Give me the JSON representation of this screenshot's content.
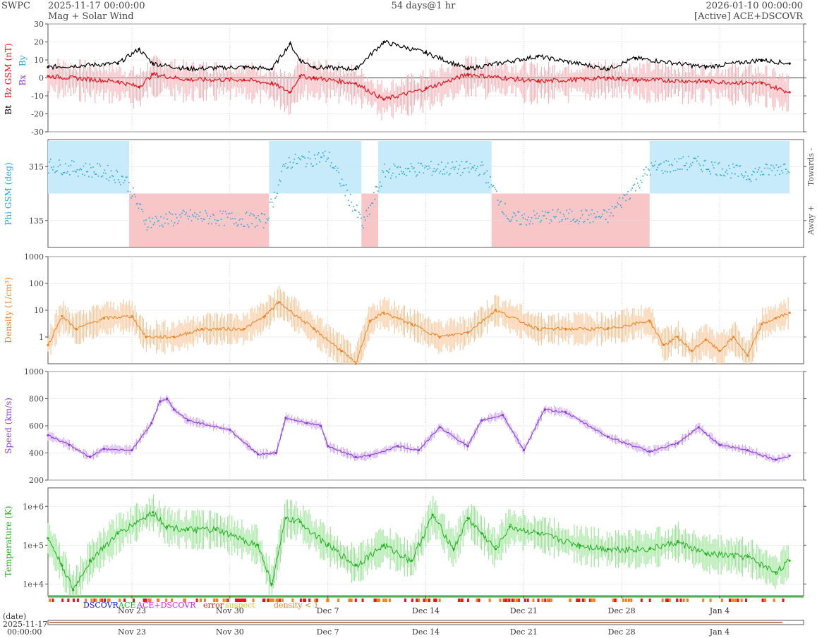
{
  "header": {
    "org": "SWPC",
    "start_time": "2025-11-17 00:00:00",
    "subtitle": "Mag + Solar Wind",
    "span": "54 days@1 hr",
    "end_time": "2026-01-10 00:00:00",
    "source": "[Active] ACE+DSCOVR"
  },
  "colors": {
    "bt": "#000000",
    "bz": "#e8141c",
    "bz_fill": "#f4b3b8",
    "bx": "#8a3fd8",
    "by": "#2aa6e6",
    "phi_towards_fill": "#c7ebfb",
    "phi_away_fill": "#f9c6c8",
    "phi_points": "#22a6e0",
    "density": "#f08020",
    "density_fill": "#f8c79a",
    "speed": "#8a3fd8",
    "speed_fill": "#cfaaf1",
    "temperature": "#1fb01f",
    "temperature_fill": "#9ee59a",
    "source_dscovr": "#1414e6",
    "source_ace": "#22b022",
    "source_both": "#e01ee6",
    "flag_error": "#e8141c",
    "flag_suspect": "#e0c010",
    "flag_density": "#f08020"
  },
  "chart_data": [
    {
      "id": "mag",
      "type": "line",
      "ylabel": "Bt  Bz GSM (nT)",
      "ylabel_parts": [
        "Bt",
        "Bz GSM (nT)",
        "Bx",
        "By"
      ],
      "ylim": [
        -30,
        30
      ],
      "yticks": [
        -30,
        -20,
        -10,
        0,
        10,
        20,
        30
      ],
      "x_days": [
        0,
        5,
        6.5,
        7.5,
        10,
        14,
        16,
        17.3,
        18,
        19,
        22,
        24,
        27,
        30,
        35,
        40,
        42,
        47,
        51,
        53
      ],
      "series": [
        {
          "name": "Bt",
          "values": [
            6,
            8,
            16,
            8,
            5,
            6,
            5,
            19,
            10,
            6,
            5,
            20,
            14,
            5,
            12,
            5,
            11,
            6,
            10,
            8
          ]
        },
        {
          "name": "Bz",
          "values": [
            1,
            -2,
            -5,
            2,
            -1,
            -1,
            -3,
            -8,
            1,
            0,
            -3,
            -12,
            -6,
            2,
            -2,
            0,
            -1,
            -2,
            -3,
            -8
          ]
        }
      ]
    },
    {
      "id": "phi",
      "type": "scatter",
      "ylabel": "Phi GSM (deg)",
      "ylim": [
        45,
        405
      ],
      "yticks": [
        135,
        315
      ],
      "right_labels": [
        "Towards -",
        "Away +"
      ],
      "sectors": [
        {
          "from": 0,
          "to": 5.8,
          "side": "towards"
        },
        {
          "from": 5.8,
          "to": 15.8,
          "side": "away"
        },
        {
          "from": 15.8,
          "to": 22.4,
          "side": "towards"
        },
        {
          "from": 22.4,
          "to": 23.6,
          "side": "away"
        },
        {
          "from": 23.6,
          "to": 31.7,
          "side": "towards"
        },
        {
          "from": 31.7,
          "to": 43,
          "side": "away"
        },
        {
          "from": 43,
          "to": 53,
          "side": "towards"
        }
      ],
      "x_days": [
        0,
        2,
        4,
        5.5,
        7,
        10,
        14,
        15.5,
        17,
        20,
        22.5,
        24,
        27,
        31,
        33,
        36,
        40,
        43,
        46,
        50,
        53
      ],
      "values": [
        320,
        310,
        300,
        275,
        130,
        150,
        140,
        135,
        330,
        350,
        120,
        300,
        310,
        310,
        140,
        150,
        150,
        310,
        330,
        290,
        320
      ]
    },
    {
      "id": "density",
      "type": "line",
      "ylabel": "Density (1/cm³)",
      "yscale": "log",
      "ylim": [
        0.1,
        1000
      ],
      "ytick_labels": [
        "1",
        "10",
        "100",
        "1000"
      ],
      "x_days": [
        0,
        1,
        2,
        4,
        6,
        7,
        9,
        11,
        14,
        15.5,
        16.5,
        19,
        21,
        22,
        23,
        24,
        26,
        28,
        30,
        32,
        35,
        37,
        40,
        43,
        44,
        45,
        46,
        47,
        48,
        49,
        50,
        51,
        52,
        53
      ],
      "values": [
        0.5,
        6,
        2,
        5,
        6,
        1,
        1,
        2,
        2,
        6,
        20,
        2,
        0.3,
        0.1,
        4,
        8,
        3,
        1,
        1.5,
        10,
        2,
        2,
        2,
        4,
        0.5,
        1,
        0.3,
        0.8,
        0.3,
        1,
        0.2,
        3,
        5,
        8
      ]
    },
    {
      "id": "speed",
      "type": "line",
      "ylabel": "Speed (km/s)",
      "ylim": [
        200,
        1000
      ],
      "yticks": [
        200,
        400,
        600,
        800,
        1000
      ],
      "x_days": [
        0,
        1.5,
        3,
        4,
        6,
        7.4,
        8,
        8.5,
        9,
        10,
        13,
        15,
        16.3,
        17,
        18.5,
        19.5,
        20,
        22,
        23,
        25,
        26.5,
        28,
        30,
        31,
        32.5,
        34,
        35.5,
        37,
        40,
        43,
        45,
        46.5,
        48,
        50,
        52,
        53
      ],
      "values": [
        530,
        460,
        370,
        430,
        420,
        620,
        780,
        800,
        720,
        640,
        570,
        390,
        400,
        660,
        620,
        600,
        450,
        370,
        380,
        450,
        420,
        590,
        450,
        640,
        680,
        420,
        720,
        700,
        520,
        410,
        470,
        590,
        460,
        420,
        350,
        380
      ]
    },
    {
      "id": "temperature",
      "type": "line",
      "ylabel": "Temperature (K)",
      "yscale": "log",
      "ylim": [
        5000,
        3000000
      ],
      "ytick_labels": [
        "1e+4",
        "1e+5",
        "1e+6"
      ],
      "x_days": [
        0,
        1,
        1.8,
        3,
        5,
        7.5,
        8.5,
        10,
        12,
        15,
        16,
        17,
        18,
        20,
        22,
        24,
        26,
        27.5,
        29,
        30,
        31,
        32,
        33,
        35,
        38,
        40,
        43,
        45,
        47,
        50,
        52,
        53
      ],
      "values": [
        150000,
        30000,
        7000,
        40000,
        200000,
        700000,
        300000,
        250000,
        250000,
        100000,
        10000,
        500000,
        400000,
        100000,
        30000,
        100000,
        40000,
        600000,
        80000,
        500000,
        200000,
        80000,
        300000,
        200000,
        100000,
        80000,
        80000,
        120000,
        60000,
        50000,
        20000,
        40000
      ]
    }
  ],
  "status_legend": {
    "dscovr": "DSCOVR",
    "ace": "ACE",
    "both": "ACE+DSCOVR",
    "error": "error",
    "suspect": "suspect",
    "density": "density < 1"
  },
  "x_axis": {
    "date_label": "(date)",
    "start_date": "2025-11-17",
    "start_time": "00:00:00",
    "ticks": [
      "Nov 23",
      "Nov 30",
      "Dec 7",
      "Dec 14",
      "Dec 21",
      "Dec 28",
      "Jan 4"
    ],
    "tick_days": [
      6,
      13,
      20,
      27,
      34,
      41,
      48
    ],
    "total_days": 54
  }
}
